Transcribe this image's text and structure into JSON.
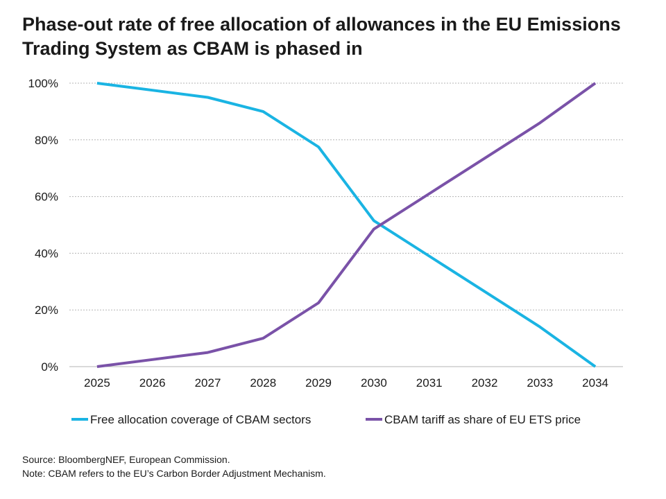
{
  "title_lines": [
    "Phase-out rate of free allocation of allowances in the EU Emissions",
    "Trading System as CBAM is phased in"
  ],
  "footnotes": {
    "source": "Source: BloombergNEF, European Commission.",
    "note": "Note: CBAM refers to the EU’s Carbon Border Adjustment Mechanism."
  },
  "colors": {
    "free_allocation": "#1ab4e3",
    "cbam_tariff": "#7a52a8",
    "grid": "#b3b3b3"
  },
  "chart_data": {
    "type": "line",
    "title": "Phase-out rate of free allocation of allowances in the EU Emissions Trading System as CBAM is phased in",
    "xlabel": "",
    "ylabel": "",
    "x": [
      "2025",
      "2026",
      "2027",
      "2028",
      "2029",
      "2030",
      "2031",
      "2032",
      "2033",
      "2034"
    ],
    "ylim": [
      0,
      100
    ],
    "yticks": [
      0,
      20,
      40,
      60,
      80,
      100
    ],
    "ytick_labels": [
      "0%",
      "20%",
      "40%",
      "60%",
      "80%",
      "100%"
    ],
    "grid": "horizontal dotted",
    "legend_position": "bottom",
    "series": [
      {
        "name": "Free allocation coverage of CBAM sectors",
        "color": "#1ab4e3",
        "values": [
          100,
          97.5,
          95,
          90,
          77.5,
          51.5,
          39,
          26.5,
          14,
          0
        ]
      },
      {
        "name": "CBAM tariff as share of EU ETS price",
        "color": "#7a52a8",
        "values": [
          0,
          2.5,
          5,
          10,
          22.5,
          48.5,
          61,
          73.5,
          86,
          100
        ]
      }
    ]
  }
}
